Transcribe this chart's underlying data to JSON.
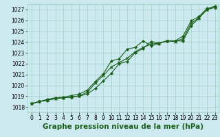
{
  "background_color": "#cce9f0",
  "grid_color": "#99ccbb",
  "line_color": "#1a5e1a",
  "title": "Graphe pression niveau de la mer (hPa)",
  "xlim": [
    -0.5,
    23.5
  ],
  "ylim": [
    1017.5,
    1027.5
  ],
  "yticks": [
    1018,
    1019,
    1020,
    1021,
    1022,
    1023,
    1024,
    1025,
    1026,
    1027
  ],
  "xticks": [
    0,
    1,
    2,
    3,
    4,
    5,
    6,
    7,
    8,
    9,
    10,
    11,
    12,
    13,
    14,
    15,
    16,
    17,
    18,
    19,
    20,
    21,
    22,
    23
  ],
  "series1": [
    1018.3,
    1018.5,
    1018.6,
    1018.8,
    1018.85,
    1018.9,
    1019.0,
    1019.2,
    1019.7,
    1020.4,
    1021.1,
    1022.0,
    1022.2,
    1023.0,
    1023.4,
    1024.05,
    1023.9,
    1024.1,
    1024.1,
    1024.1,
    1025.5,
    1026.2,
    1027.0,
    1027.2
  ],
  "series2": [
    1018.3,
    1018.5,
    1018.65,
    1018.75,
    1018.85,
    1018.9,
    1019.05,
    1019.35,
    1020.2,
    1020.9,
    1021.7,
    1022.1,
    1022.5,
    1023.1,
    1023.5,
    1023.8,
    1023.9,
    1024.1,
    1024.05,
    1024.3,
    1025.7,
    1026.25,
    1027.0,
    1027.2
  ],
  "series3": [
    1018.3,
    1018.5,
    1018.7,
    1018.85,
    1018.9,
    1019.05,
    1019.2,
    1019.55,
    1020.35,
    1021.05,
    1022.25,
    1022.45,
    1023.35,
    1023.5,
    1024.1,
    1023.65,
    1023.85,
    1024.1,
    1024.1,
    1024.55,
    1025.95,
    1026.35,
    1027.1,
    1027.3
  ],
  "linewidth": 0.8,
  "markersize": 2.0,
  "title_fontsize": 7.5,
  "tick_fontsize": 5.5
}
